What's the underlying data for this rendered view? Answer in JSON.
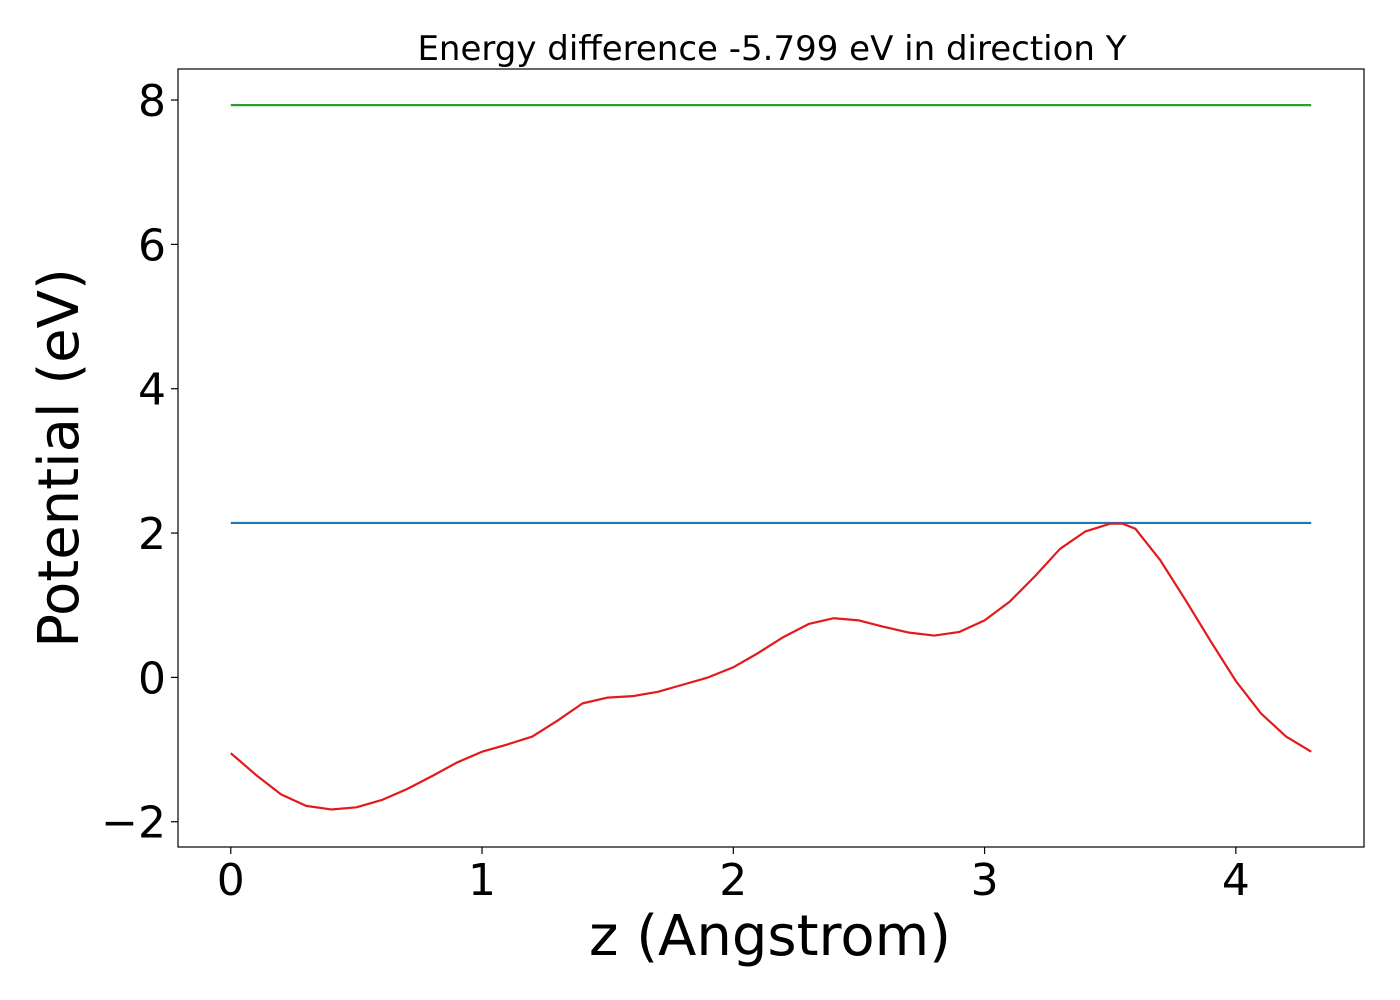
{
  "chart_data": {
    "type": "line",
    "title": "Energy difference -5.799 eV in direction Y",
    "xlabel": "z (Angstrom)",
    "ylabel": "Potential (eV)",
    "xlim": [
      -0.21,
      4.51
    ],
    "ylim": [
      -2.35,
      8.43
    ],
    "xticks": [
      0,
      1,
      2,
      3,
      4
    ],
    "xtick_labels": [
      "0",
      "1",
      "2",
      "3",
      "4"
    ],
    "yticks": [
      -2,
      0,
      2,
      4,
      6,
      8
    ],
    "ytick_labels": [
      "−2",
      "0",
      "2",
      "4",
      "6",
      "8"
    ],
    "grid": false,
    "series": [
      {
        "color": "#2ca02c",
        "x": [
          0,
          4.3
        ],
        "y": [
          7.93,
          7.93
        ]
      },
      {
        "color": "#1f77b4",
        "x": [
          0,
          4.3
        ],
        "y": [
          2.14,
          2.14
        ]
      },
      {
        "color": "#e31a1c",
        "x": [
          0,
          0.1,
          0.2,
          0.3,
          0.4,
          0.5,
          0.6,
          0.7,
          0.8,
          0.9,
          1.0,
          1.1,
          1.2,
          1.3,
          1.4,
          1.5,
          1.6,
          1.7,
          1.8,
          1.9,
          2.0,
          2.1,
          2.2,
          2.3,
          2.4,
          2.5,
          2.6,
          2.7,
          2.8,
          2.9,
          3.0,
          3.1,
          3.2,
          3.3,
          3.4,
          3.5,
          3.55,
          3.6,
          3.7,
          3.8,
          3.9,
          4.0,
          4.1,
          4.2,
          4.3
        ],
        "y": [
          -1.05,
          -1.35,
          -1.62,
          -1.78,
          -1.83,
          -1.8,
          -1.7,
          -1.55,
          -1.37,
          -1.18,
          -1.03,
          -0.93,
          -0.82,
          -0.6,
          -0.36,
          -0.28,
          -0.26,
          -0.2,
          -0.1,
          0.0,
          0.14,
          0.34,
          0.56,
          0.74,
          0.82,
          0.79,
          0.7,
          0.62,
          0.58,
          0.63,
          0.79,
          1.05,
          1.4,
          1.78,
          2.02,
          2.13,
          2.13,
          2.06,
          1.62,
          1.07,
          0.5,
          -0.05,
          -0.5,
          -0.82,
          -1.03
        ]
      }
    ]
  }
}
